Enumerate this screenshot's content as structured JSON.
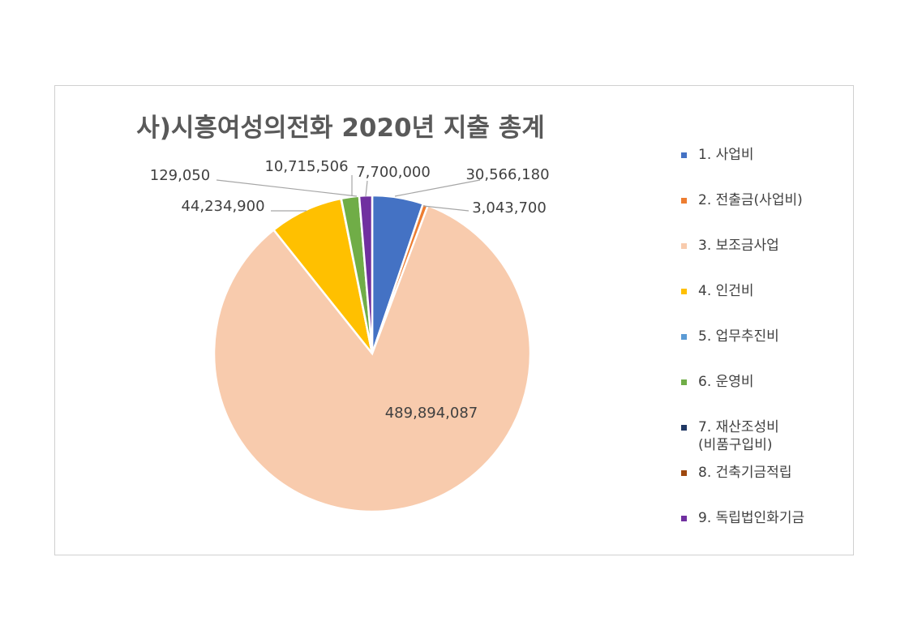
{
  "chart_data": {
    "type": "pie",
    "title": "사)시흥여성의전화 2020년 지출 총계",
    "legend_position": "right",
    "slices": [
      {
        "label": "1. 사업비",
        "value": 30566180,
        "value_label": "30,566,180",
        "color": "#4472C4"
      },
      {
        "label": "2. 전출금(사업비)",
        "value": 3043700,
        "value_label": "3,043,700",
        "color": "#ED7D31"
      },
      {
        "label": "3. 보조금사업",
        "value": 489894087,
        "value_label": "489,894,087",
        "color": "#F8CBAD"
      },
      {
        "label": "4. 인건비",
        "value": 44234900,
        "value_label": "44,234,900",
        "color": "#FFC000"
      },
      {
        "label": "5. 업무추진비",
        "value": 129050,
        "value_label": "129,050",
        "color": "#5B9BD5"
      },
      {
        "label": "6. 운영비",
        "value": 10715506,
        "value_label": "10,715,506",
        "color": "#70AD47"
      },
      {
        "label": "7. 재산조성비\n(비품구입비)",
        "value": 0,
        "value_label": "",
        "color": "#203864"
      },
      {
        "label": "8. 건축기금적립",
        "value": 0,
        "value_label": "",
        "color": "#9E480E"
      },
      {
        "label": "9. 독립법인화기금",
        "value": 7700000,
        "value_label": "7,700,000",
        "color": "#7030A0"
      }
    ]
  }
}
